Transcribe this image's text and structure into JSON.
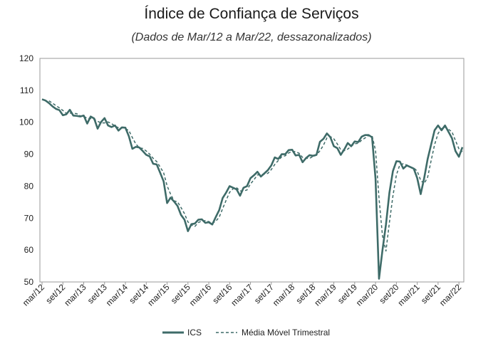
{
  "chart_data": {
    "type": "line",
    "title": "Índice de Confiança de Serviços",
    "subtitle": "(Dados de Mar/12 a Mar/22, dessazonalizados)",
    "xlabel": "",
    "ylabel": "",
    "ylim": [
      50,
      120
    ],
    "yticks": [
      50,
      60,
      70,
      80,
      90,
      100,
      110,
      120
    ],
    "grid": false,
    "legend_position": "bottom",
    "x_start": "mar/12",
    "x_end": "mar/22",
    "x_tick_labels": [
      "mar/12",
      "set/12",
      "mar/13",
      "set/13",
      "mar/14",
      "set/14",
      "mar/15",
      "set/15",
      "mar/16",
      "set/16",
      "mar/17",
      "set/17",
      "mar/18",
      "set/18",
      "mar/19",
      "set/19",
      "mar/20",
      "set/20",
      "mar/21",
      "set/21",
      "mar/22"
    ],
    "series": [
      {
        "name": "ICS",
        "style": "solid",
        "color": "#3e6b68",
        "values": [
          107.2,
          106.8,
          106.0,
          105.0,
          104.2,
          103.8,
          102.2,
          102.5,
          103.9,
          102.1,
          102.0,
          101.8,
          102.1,
          99.6,
          101.8,
          101.2,
          98.0,
          100.1,
          101.3,
          99.0,
          98.5,
          99.0,
          97.4,
          98.4,
          98.3,
          95.6,
          91.7,
          92.3,
          92.1,
          91.0,
          89.8,
          89.3,
          87.0,
          86.8,
          84.2,
          81.5,
          74.7,
          76.4,
          75.2,
          73.8,
          71.0,
          69.5,
          65.9,
          68.1,
          68.3,
          69.5,
          69.6,
          68.5,
          68.7,
          68.0,
          70.3,
          72.5,
          76.3,
          78.0,
          80.0,
          79.5,
          79.0,
          77.0,
          79.5,
          80.0,
          82.5,
          83.4,
          84.5,
          83.0,
          84.0,
          85.0,
          86.5,
          89.0,
          88.5,
          90.0,
          90.0,
          91.3,
          91.4,
          89.6,
          89.8,
          87.5,
          88.8,
          89.7,
          89.5,
          89.8,
          93.9,
          94.8,
          96.5,
          95.3,
          92.5,
          91.9,
          89.8,
          91.5,
          93.5,
          92.5,
          94.0,
          93.8,
          95.5,
          96.0,
          96.0,
          95.3,
          82.3,
          51.0,
          60.0,
          68.0,
          78.0,
          84.7,
          87.8,
          87.7,
          85.5,
          86.5,
          86.0,
          85.5,
          82.5,
          77.5,
          82.5,
          88.5,
          93.0,
          97.5,
          99.0,
          97.5,
          99.0,
          97.0,
          95.0,
          91.0,
          89.2,
          92.2
        ]
      },
      {
        "name": "Média Móvel Trimestral",
        "style": "dashed",
        "color": "#3e6b68",
        "values": [
          null,
          null,
          106.7,
          106.0,
          105.2,
          104.5,
          103.7,
          102.8,
          102.9,
          102.8,
          102.7,
          102.0,
          101.9,
          101.2,
          101.2,
          100.9,
          100.3,
          99.8,
          99.8,
          100.1,
          99.6,
          98.8,
          98.3,
          98.3,
          98.0,
          97.4,
          95.2,
          93.2,
          92.0,
          91.8,
          91.0,
          90.0,
          88.7,
          87.7,
          86.0,
          84.2,
          80.1,
          77.5,
          75.4,
          75.1,
          73.3,
          71.4,
          68.8,
          67.8,
          67.4,
          68.6,
          69.1,
          69.2,
          68.9,
          68.4,
          69.0,
          70.3,
          73.0,
          75.6,
          78.1,
          79.2,
          79.5,
          78.5,
          78.5,
          78.8,
          80.7,
          82.0,
          83.5,
          83.6,
          83.8,
          84.0,
          85.2,
          86.8,
          88.0,
          89.2,
          89.5,
          90.4,
          90.9,
          90.8,
          90.3,
          89.0,
          88.7,
          88.7,
          89.3,
          89.7,
          91.1,
          92.8,
          95.1,
          95.5,
          94.8,
          93.2,
          91.4,
          91.1,
          91.6,
          92.5,
          93.3,
          93.4,
          94.4,
          95.1,
          95.8,
          95.8,
          91.2,
          76.2,
          64.4,
          59.7,
          68.7,
          76.9,
          83.5,
          86.7,
          87.0,
          86.6,
          86.0,
          85.7,
          84.7,
          81.8,
          80.8,
          82.8,
          88.0,
          93.0,
          96.5,
          98.0,
          98.5,
          97.8,
          97.0,
          94.3,
          91.7,
          90.8
        ]
      }
    ]
  }
}
